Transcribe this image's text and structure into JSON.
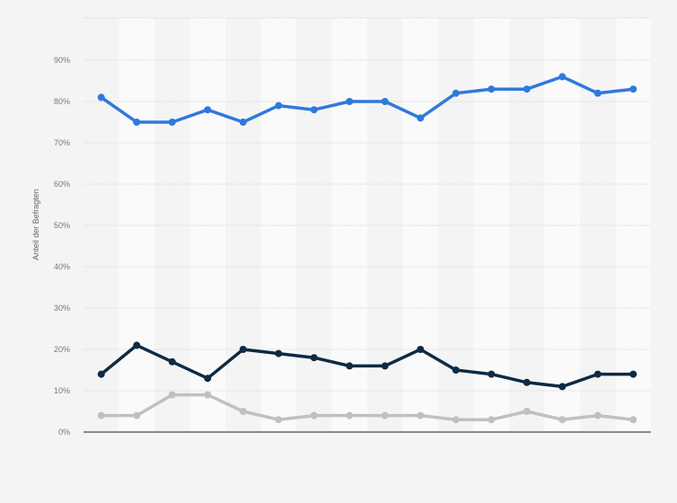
{
  "chart_data": {
    "type": "line",
    "title": "",
    "xlabel": "",
    "ylabel": "Anteil der Befragten",
    "ylim": [
      0,
      90
    ],
    "yticks": [
      0,
      10,
      20,
      30,
      40,
      50,
      60,
      70,
      80,
      90
    ],
    "ytick_labels": [
      "0%",
      "10%",
      "20%",
      "30%",
      "40%",
      "50%",
      "60%",
      "70%",
      "80%",
      "90%"
    ],
    "grid": true,
    "legend": "none",
    "categories_count": 16,
    "series": [
      {
        "color": "#2f79dd",
        "values": [
          81,
          75,
          75,
          78,
          75,
          79,
          78,
          80,
          80,
          76,
          82,
          83,
          83,
          86,
          82,
          83
        ]
      },
      {
        "color": "#0f2a44",
        "values": [
          14,
          21,
          17,
          13,
          20,
          19,
          18,
          16,
          16,
          20,
          15,
          14,
          12,
          11,
          14,
          14
        ]
      },
      {
        "color": "#c0c0c0",
        "values": [
          4,
          4,
          9,
          9,
          5,
          3,
          4,
          4,
          4,
          4,
          3,
          3,
          5,
          3,
          4,
          3
        ]
      }
    ]
  }
}
